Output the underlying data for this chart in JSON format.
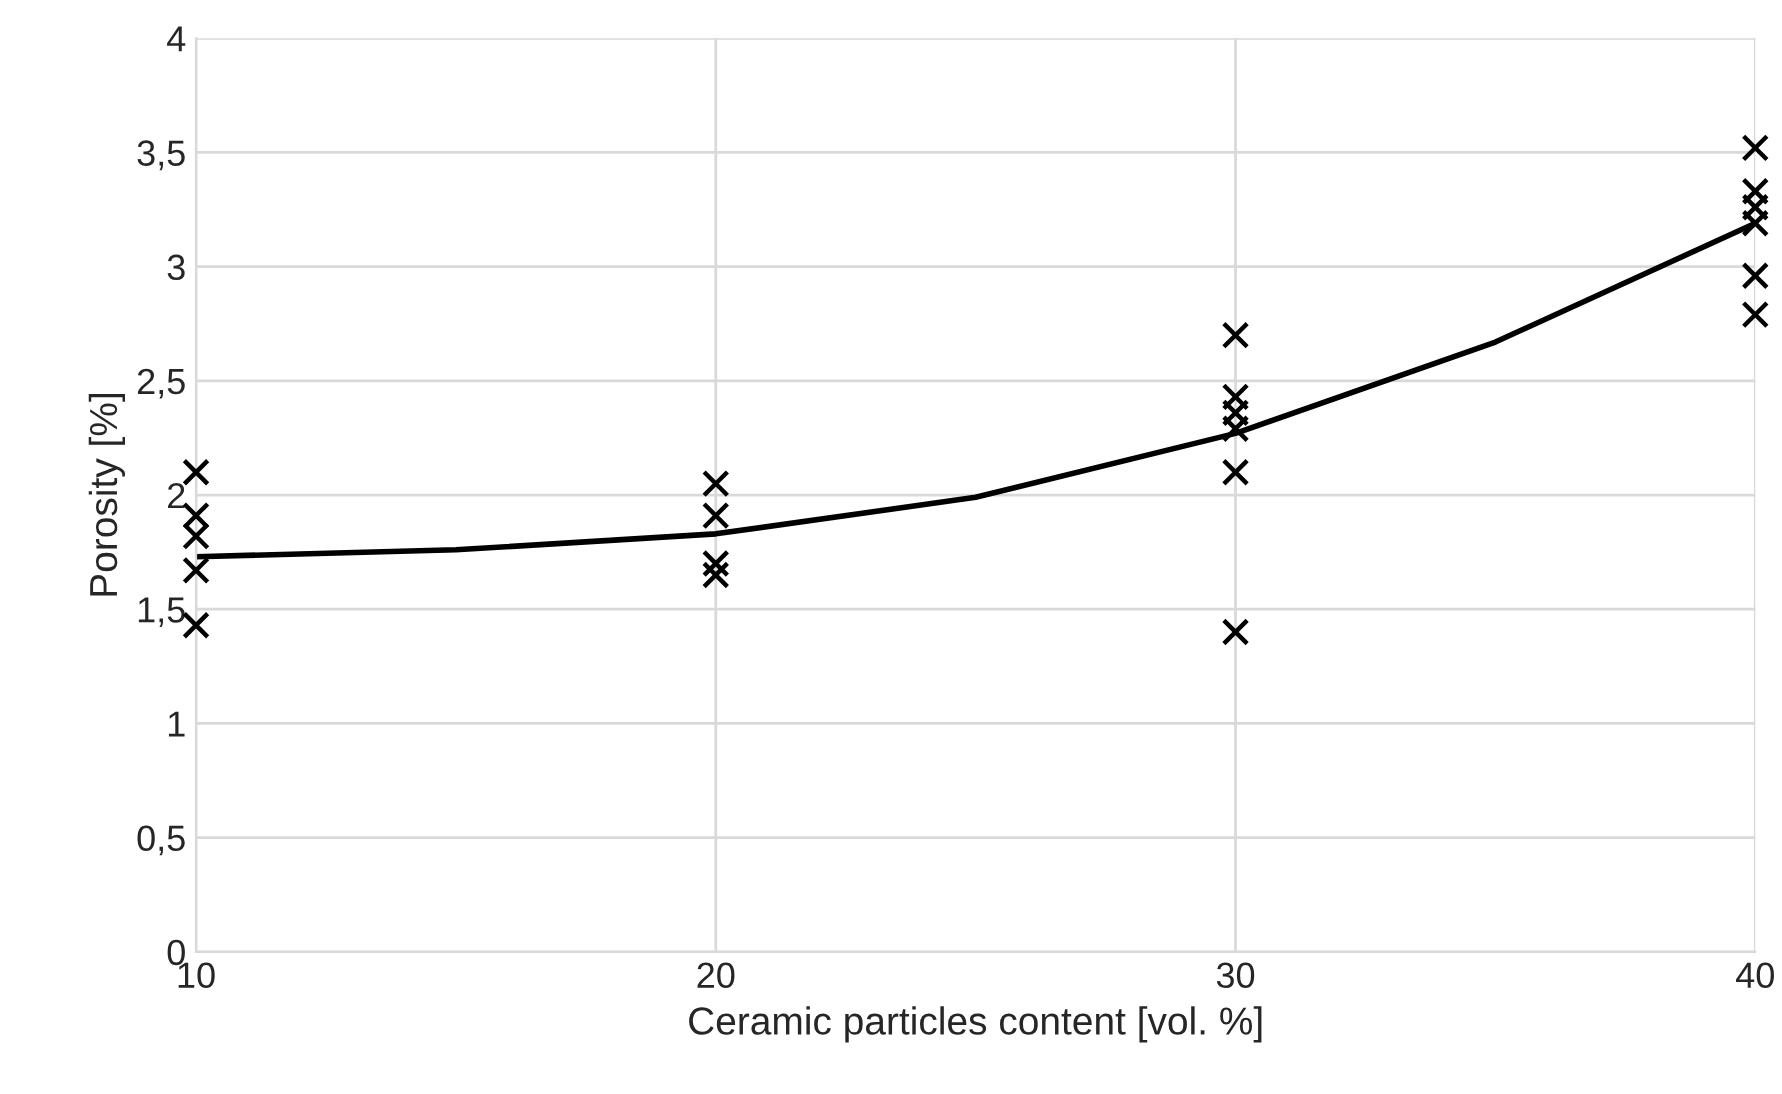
{
  "chart_data": {
    "type": "scatter",
    "xlabel": "Ceramic particles content [vol. %]",
    "ylabel": "Porosity [%]",
    "xlim": [
      10,
      40
    ],
    "xticks": [
      10,
      20,
      30,
      40
    ],
    "ylim": [
      0,
      4
    ],
    "yticks": [
      0,
      {
        "value": 0.5,
        "label": "0,5"
      },
      1,
      {
        "value": 1.5,
        "label": "1,5"
      },
      2,
      {
        "value": 2.5,
        "label": "2,5"
      },
      3,
      {
        "value": 3.5,
        "label": "3,5"
      },
      4
    ],
    "grid": true,
    "series": [
      {
        "color": "#000000",
        "marker": "cross",
        "x": [
          10,
          10,
          10,
          10,
          10,
          20,
          20,
          20,
          20,
          30,
          30,
          30,
          30,
          30,
          30,
          40,
          40,
          40,
          40,
          40,
          40
        ],
        "values": [
          2.1,
          1.91,
          1.82,
          1.67,
          1.43,
          2.05,
          1.91,
          1.7,
          1.65,
          2.7,
          2.43,
          2.36,
          2.29,
          2.1,
          1.4,
          3.52,
          3.33,
          3.26,
          3.19,
          2.96,
          2.79
        ]
      },
      {
        "type": "line",
        "color": "#000000",
        "line_style": "solid",
        "marker": "none",
        "x": [
          10,
          15,
          20,
          25,
          30,
          35,
          40
        ],
        "values": [
          1.73,
          1.76,
          1.83,
          1.99,
          2.27,
          2.67,
          3.19
        ]
      }
    ]
  }
}
